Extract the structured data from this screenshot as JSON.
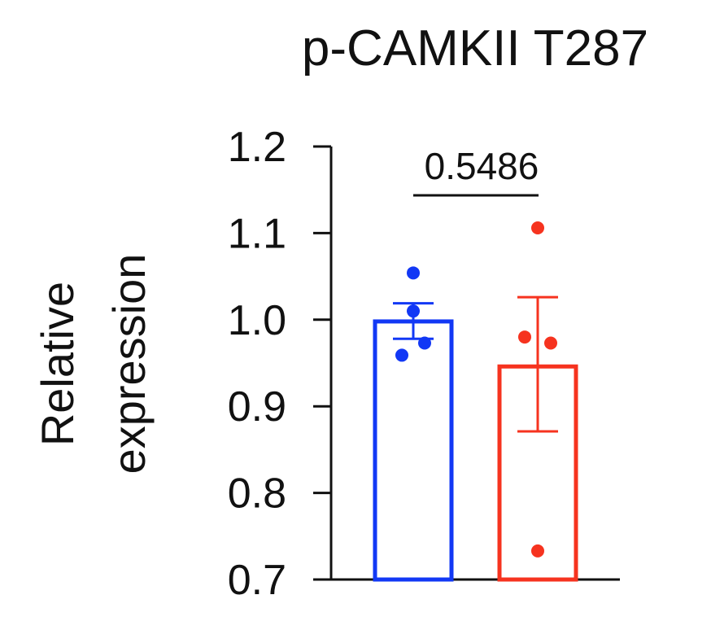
{
  "chart_data": {
    "type": "bar",
    "title": "p-CAMKII T287",
    "ylabel": [
      "Relative",
      "expression"
    ],
    "xlabel": "",
    "ylim": [
      0.7,
      1.2
    ],
    "yticks": [
      "0.7",
      "0.8",
      "0.9",
      "1.0",
      "1.1",
      "1.2"
    ],
    "categories": [
      "",
      ""
    ],
    "series": [
      {
        "mean": 0.998,
        "error": [
          0.978,
          1.019
        ],
        "points": [
          1.054,
          1.01,
          0.973,
          0.959
        ],
        "color": "#1238f5"
      },
      {
        "mean": 0.946,
        "error": [
          0.871,
          1.026
        ],
        "points": [
          1.106,
          0.98,
          0.973,
          0.733
        ],
        "color": "#f6331f"
      }
    ],
    "comparison": {
      "label": "0.5486"
    }
  }
}
